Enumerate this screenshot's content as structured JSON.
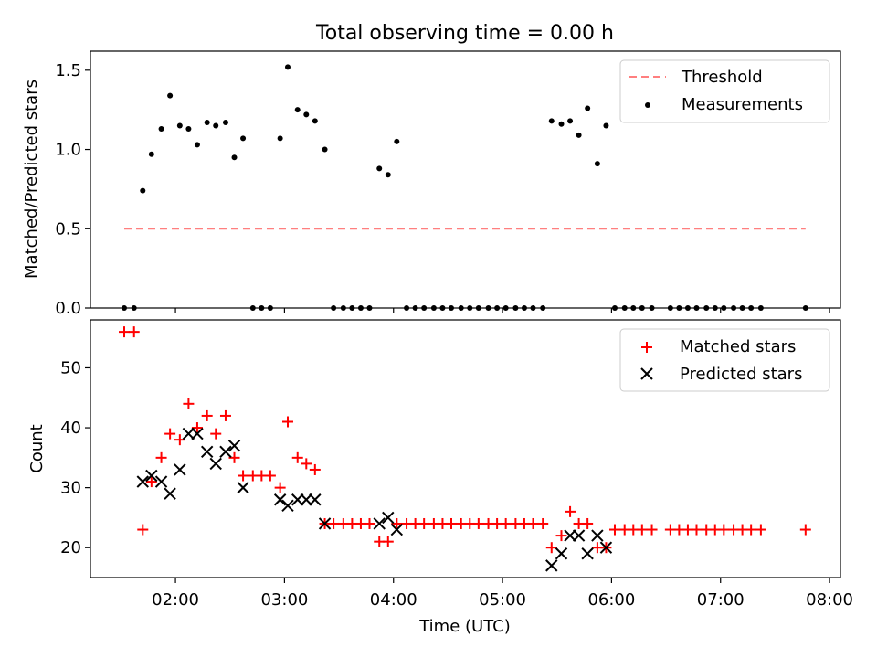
{
  "chart_data": [
    {
      "type": "scatter",
      "title": "Total observing time = 0.00 h",
      "xlabel": "",
      "ylabel": "Matched/Predicted stars",
      "ylim": [
        0,
        1.62
      ],
      "yticks": [
        0.0,
        0.5,
        1.0,
        1.5
      ],
      "ytick_labels": [
        "0.0",
        "0.5",
        "1.0",
        "1.5"
      ],
      "xlim": [
        1.22,
        8.1
      ],
      "legend_position": "top-right",
      "legend": [
        "Threshold",
        "Measurements"
      ],
      "threshold": {
        "name": "Threshold",
        "y": 0.5,
        "x": [
          1.53,
          7.78
        ],
        "color": "#ff7f7f",
        "style": "dashed"
      },
      "series": [
        {
          "name": "Measurements",
          "color": "#000000",
          "marker": "dot",
          "points": [
            [
              1.53,
              0.0
            ],
            [
              1.62,
              0.0
            ],
            [
              1.7,
              0.74
            ],
            [
              1.78,
              0.97
            ],
            [
              1.87,
              1.13
            ],
            [
              1.95,
              1.34
            ],
            [
              2.04,
              1.15
            ],
            [
              2.12,
              1.13
            ],
            [
              2.2,
              1.03
            ],
            [
              2.29,
              1.17
            ],
            [
              2.37,
              1.15
            ],
            [
              2.46,
              1.17
            ],
            [
              2.54,
              0.95
            ],
            [
              2.62,
              1.07
            ],
            [
              2.71,
              0.0
            ],
            [
              2.79,
              0.0
            ],
            [
              2.87,
              0.0
            ],
            [
              2.96,
              1.07
            ],
            [
              3.03,
              1.52
            ],
            [
              3.12,
              1.25
            ],
            [
              3.2,
              1.22
            ],
            [
              3.28,
              1.18
            ],
            [
              3.37,
              1.0
            ],
            [
              3.45,
              0.0
            ],
            [
              3.54,
              0.0
            ],
            [
              3.62,
              0.0
            ],
            [
              3.7,
              0.0
            ],
            [
              3.78,
              0.0
            ],
            [
              3.87,
              0.88
            ],
            [
              3.95,
              0.84
            ],
            [
              4.03,
              1.05
            ],
            [
              4.12,
              0.0
            ],
            [
              4.2,
              0.0
            ],
            [
              4.28,
              0.0
            ],
            [
              4.37,
              0.0
            ],
            [
              4.45,
              0.0
            ],
            [
              4.53,
              0.0
            ],
            [
              4.62,
              0.0
            ],
            [
              4.7,
              0.0
            ],
            [
              4.78,
              0.0
            ],
            [
              4.87,
              0.0
            ],
            [
              4.95,
              0.0
            ],
            [
              5.03,
              0.0
            ],
            [
              5.12,
              0.0
            ],
            [
              5.2,
              0.0
            ],
            [
              5.28,
              0.0
            ],
            [
              5.37,
              0.0
            ],
            [
              5.45,
              1.18
            ],
            [
              5.54,
              1.16
            ],
            [
              5.62,
              1.18
            ],
            [
              5.7,
              1.09
            ],
            [
              5.78,
              1.26
            ],
            [
              5.87,
              0.91
            ],
            [
              5.95,
              1.15
            ],
            [
              6.03,
              0.0
            ],
            [
              6.12,
              0.0
            ],
            [
              6.2,
              0.0
            ],
            [
              6.28,
              0.0
            ],
            [
              6.37,
              0.0
            ],
            [
              6.54,
              0.0
            ],
            [
              6.62,
              0.0
            ],
            [
              6.7,
              0.0
            ],
            [
              6.78,
              0.0
            ],
            [
              6.87,
              0.0
            ],
            [
              6.95,
              0.0
            ],
            [
              7.03,
              0.0
            ],
            [
              7.12,
              0.0
            ],
            [
              7.2,
              0.0
            ],
            [
              7.28,
              0.0
            ],
            [
              7.37,
              0.0
            ],
            [
              7.78,
              0.0
            ]
          ]
        }
      ]
    },
    {
      "type": "scatter",
      "title": "",
      "xlabel": "Time (UTC)",
      "ylabel": "Count",
      "ylim": [
        15,
        58
      ],
      "yticks": [
        20,
        30,
        40,
        50
      ],
      "ytick_labels": [
        "20",
        "30",
        "40",
        "50"
      ],
      "xlim": [
        1.22,
        8.1
      ],
      "xticks": [
        2,
        3,
        4,
        5,
        6,
        7,
        8
      ],
      "xtick_labels": [
        "02:00",
        "03:00",
        "04:00",
        "05:00",
        "06:00",
        "07:00",
        "08:00"
      ],
      "legend_position": "top-right",
      "legend": [
        "Matched stars",
        "Predicted stars"
      ],
      "series": [
        {
          "name": "Matched stars",
          "color": "#ff0000",
          "marker": "plus",
          "points": [
            [
              1.53,
              56
            ],
            [
              1.62,
              56
            ],
            [
              1.7,
              23
            ],
            [
              1.78,
              31
            ],
            [
              1.87,
              35
            ],
            [
              1.95,
              39
            ],
            [
              2.04,
              38
            ],
            [
              2.12,
              44
            ],
            [
              2.2,
              40
            ],
            [
              2.29,
              42
            ],
            [
              2.37,
              39
            ],
            [
              2.46,
              42
            ],
            [
              2.54,
              35
            ],
            [
              2.62,
              32
            ],
            [
              2.71,
              32
            ],
            [
              2.79,
              32
            ],
            [
              2.87,
              32
            ],
            [
              2.96,
              30
            ],
            [
              3.03,
              41
            ],
            [
              3.12,
              35
            ],
            [
              3.2,
              34
            ],
            [
              3.28,
              33
            ],
            [
              3.37,
              24
            ],
            [
              3.45,
              24
            ],
            [
              3.54,
              24
            ],
            [
              3.62,
              24
            ],
            [
              3.7,
              24
            ],
            [
              3.78,
              24
            ],
            [
              3.87,
              21
            ],
            [
              3.95,
              21
            ],
            [
              4.03,
              24
            ],
            [
              4.12,
              24
            ],
            [
              4.2,
              24
            ],
            [
              4.28,
              24
            ],
            [
              4.37,
              24
            ],
            [
              4.45,
              24
            ],
            [
              4.53,
              24
            ],
            [
              4.62,
              24
            ],
            [
              4.7,
              24
            ],
            [
              4.78,
              24
            ],
            [
              4.87,
              24
            ],
            [
              4.95,
              24
            ],
            [
              5.03,
              24
            ],
            [
              5.12,
              24
            ],
            [
              5.2,
              24
            ],
            [
              5.28,
              24
            ],
            [
              5.37,
              24
            ],
            [
              5.45,
              20
            ],
            [
              5.54,
              22
            ],
            [
              5.62,
              26
            ],
            [
              5.7,
              24
            ],
            [
              5.78,
              24
            ],
            [
              5.87,
              20
            ],
            [
              5.95,
              20
            ],
            [
              6.03,
              23
            ],
            [
              6.12,
              23
            ],
            [
              6.2,
              23
            ],
            [
              6.28,
              23
            ],
            [
              6.37,
              23
            ],
            [
              6.54,
              23
            ],
            [
              6.62,
              23
            ],
            [
              6.7,
              23
            ],
            [
              6.78,
              23
            ],
            [
              6.87,
              23
            ],
            [
              6.95,
              23
            ],
            [
              7.03,
              23
            ],
            [
              7.12,
              23
            ],
            [
              7.2,
              23
            ],
            [
              7.28,
              23
            ],
            [
              7.37,
              23
            ],
            [
              7.78,
              23
            ]
          ]
        },
        {
          "name": "Predicted stars",
          "color": "#000000",
          "marker": "x",
          "points": [
            [
              1.7,
              31
            ],
            [
              1.78,
              32
            ],
            [
              1.87,
              31
            ],
            [
              1.95,
              29
            ],
            [
              2.04,
              33
            ],
            [
              2.12,
              39
            ],
            [
              2.2,
              39
            ],
            [
              2.29,
              36
            ],
            [
              2.37,
              34
            ],
            [
              2.46,
              36
            ],
            [
              2.54,
              37
            ],
            [
              2.62,
              30
            ],
            [
              2.96,
              28
            ],
            [
              3.03,
              27
            ],
            [
              3.12,
              28
            ],
            [
              3.2,
              28
            ],
            [
              3.28,
              28
            ],
            [
              3.37,
              24
            ],
            [
              3.87,
              24
            ],
            [
              3.95,
              25
            ],
            [
              4.03,
              23
            ],
            [
              5.45,
              17
            ],
            [
              5.54,
              19
            ],
            [
              5.62,
              22
            ],
            [
              5.7,
              22
            ],
            [
              5.78,
              19
            ],
            [
              5.87,
              22
            ],
            [
              5.95,
              20
            ]
          ]
        }
      ]
    }
  ]
}
